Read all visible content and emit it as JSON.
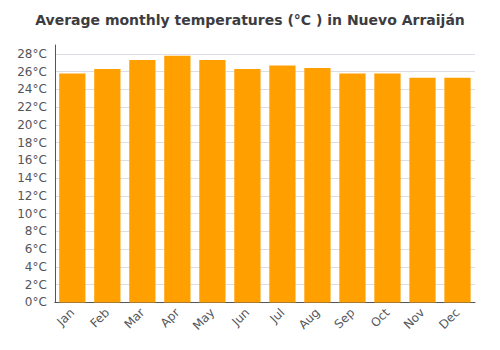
{
  "chart_data": {
    "type": "bar",
    "title": "Average monthly temperatures (°C ) in Nuevo Arraiján",
    "categories": [
      "Jan",
      "Feb",
      "Mar",
      "Apr",
      "May",
      "Jun",
      "Jul",
      "Aug",
      "Sep",
      "Oct",
      "Nov",
      "Dec"
    ],
    "values": [
      25.8,
      26.3,
      27.3,
      27.8,
      27.3,
      26.3,
      26.7,
      26.4,
      25.8,
      25.8,
      25.3,
      25.3
    ],
    "color": "#FFA000",
    "ylim": [
      0,
      29
    ],
    "yticks": [
      {
        "value": 0,
        "label": "0°C"
      },
      {
        "value": 2,
        "label": "2°C"
      },
      {
        "value": 4,
        "label": "4°C"
      },
      {
        "value": 6,
        "label": "6°C"
      },
      {
        "value": 8,
        "label": "8°C"
      },
      {
        "value": 10,
        "label": "10°C"
      },
      {
        "value": 12,
        "label": "12°C"
      },
      {
        "value": 14,
        "label": "14°C"
      },
      {
        "value": 16,
        "label": "16°C"
      },
      {
        "value": 18,
        "label": "18°C"
      },
      {
        "value": 20,
        "label": "20°C"
      },
      {
        "value": 22,
        "label": "22°C"
      },
      {
        "value": 24,
        "label": "24°C"
      },
      {
        "value": 26,
        "label": "26°C"
      },
      {
        "value": 28,
        "label": "28°C"
      }
    ],
    "grid": true
  }
}
